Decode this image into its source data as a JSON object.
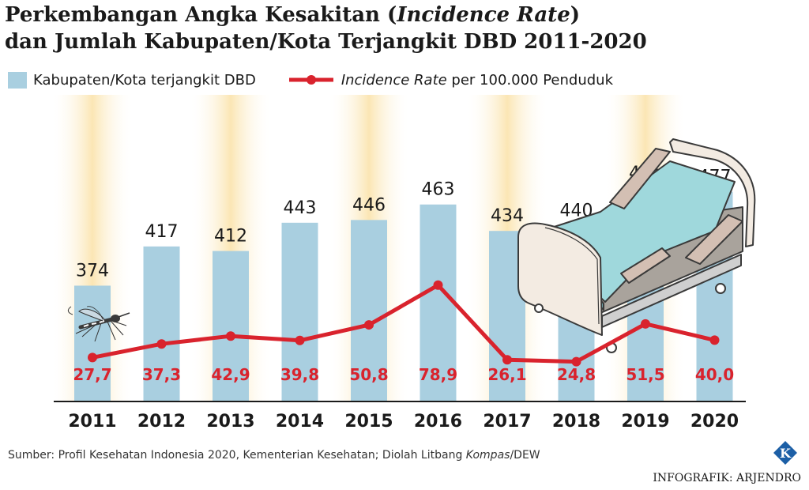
{
  "title": {
    "line1_a": "Perkembangan Angka Kesakitan (",
    "line1_em": "Incidence Rate",
    "line1_b": ")",
    "line2": "dan Jumlah Kabupaten/Kota Terjangkit DBD 2011-2020"
  },
  "legend": {
    "bar_label": "Kabupaten/Kota terjangkit DBD",
    "line_label_em": "Incidence Rate",
    "line_label_rest": " per 100.000 Penduduk"
  },
  "source": {
    "text_a": "Sumber: Profil Kesehatan Indonesia 2020, Kementerian Kesehatan; Diolah Litbang ",
    "text_em": "Kompas",
    "text_b": "/DEW"
  },
  "credit": "INFOGRAFIK: ARJENDRO",
  "logo_letter": "K",
  "colors": {
    "bar": "#a9cfe0",
    "bar_stripe": "#fbecc6",
    "line": "#d9232d",
    "logo": "#1c5fa6"
  },
  "icons": [
    "mosquito-illustration",
    "hospital-bed-illustration"
  ],
  "chart_data": {
    "type": "bar",
    "categories": [
      "2011",
      "2012",
      "2013",
      "2014",
      "2015",
      "2016",
      "2017",
      "2018",
      "2019",
      "2020"
    ],
    "series": [
      {
        "name": "Kabupaten/Kota terjangkit DBD",
        "type": "bar",
        "values": [
          374,
          417,
          412,
          443,
          446,
          463,
          434,
          440,
          481,
          477
        ],
        "labels": [
          "374",
          "417",
          "412",
          "443",
          "446",
          "463",
          "434",
          "440",
          "481",
          "477"
        ]
      },
      {
        "name": "Incidence Rate per 100.000 Penduduk",
        "type": "line",
        "values": [
          27.7,
          37.3,
          42.9,
          39.8,
          50.8,
          78.9,
          26.1,
          24.8,
          51.5,
          40.0
        ],
        "labels": [
          "27,7",
          "37,3",
          "42,9",
          "39,8",
          "50,8",
          "78,9",
          "26,1",
          "24,8",
          "51,5",
          "40,0"
        ]
      }
    ],
    "grid": false,
    "legend_position": "top-left"
  }
}
